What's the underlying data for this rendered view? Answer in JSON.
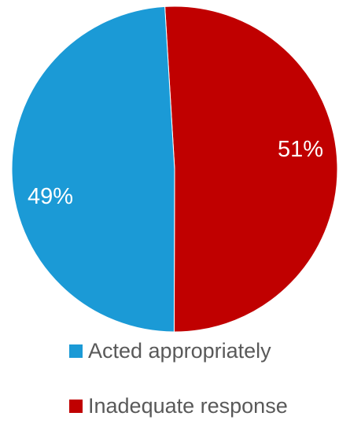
{
  "chart_data": {
    "type": "pie",
    "categories": [
      "Acted appropriately",
      "Inadequate response"
    ],
    "values": [
      49,
      51
    ],
    "data_labels": [
      "49%",
      "51%"
    ],
    "colors": [
      "#1B9AD6",
      "#C00000"
    ],
    "title": "",
    "legend_position": "bottom"
  }
}
